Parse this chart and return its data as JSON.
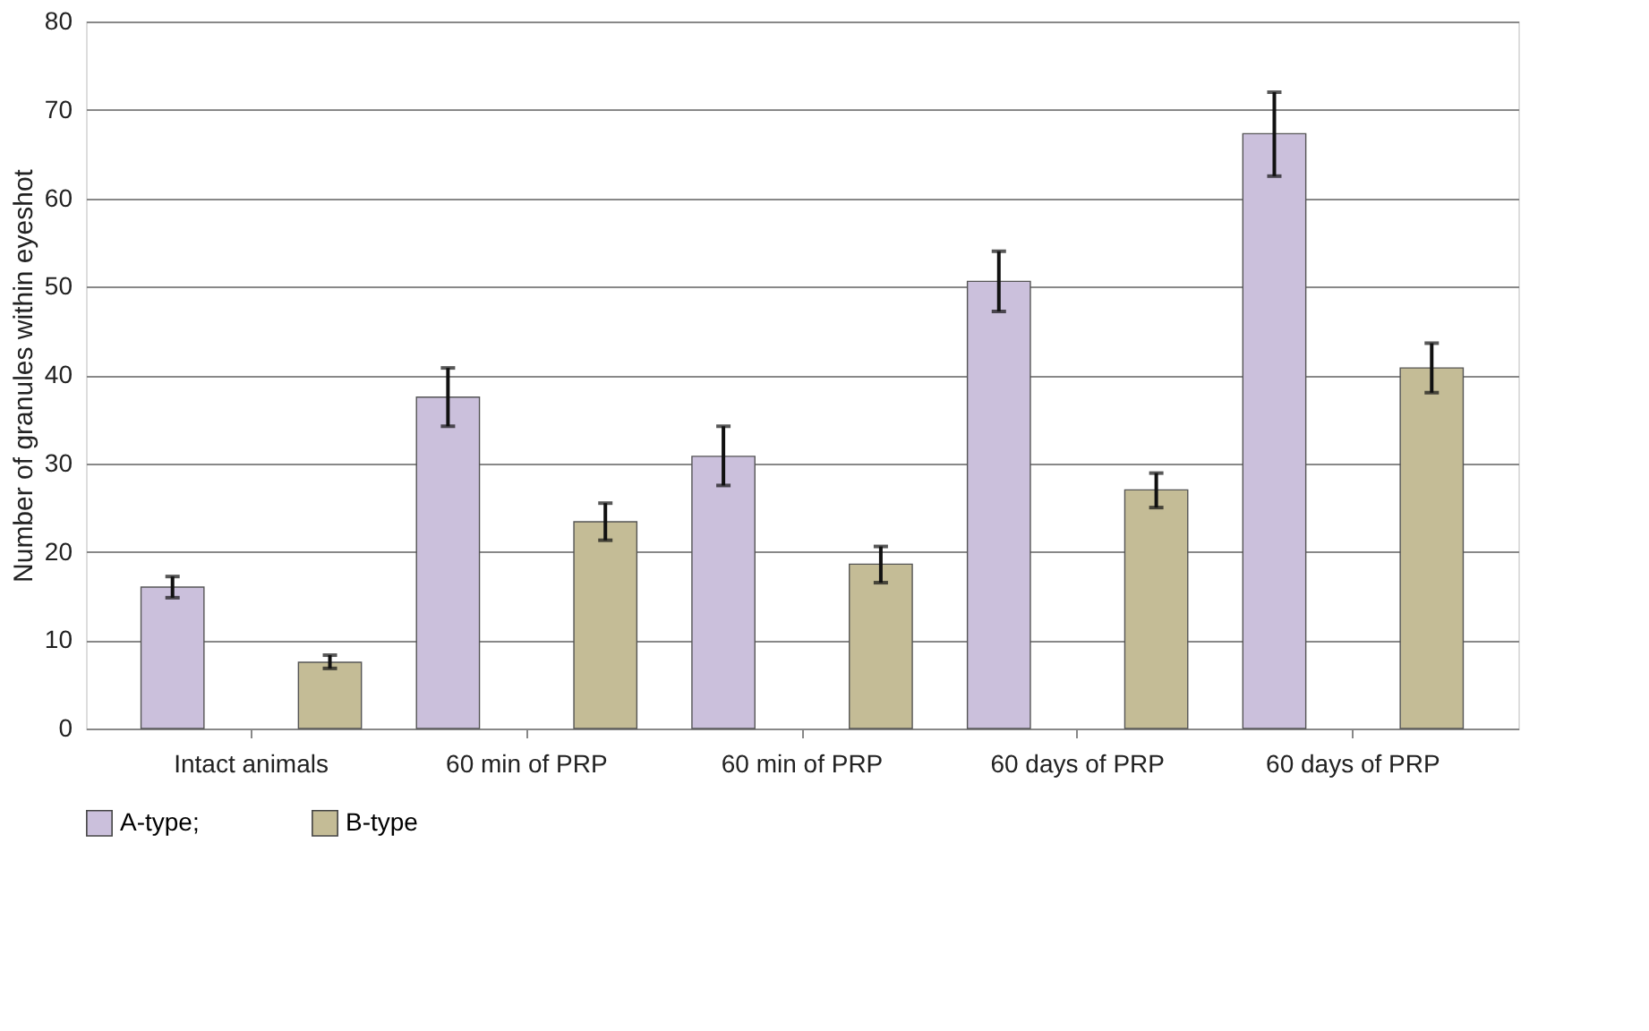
{
  "chart_data": {
    "type": "bar",
    "ylabel": "Number of granules within eyeshot",
    "categories": [
      "Intact animals",
      "60 min of PRP",
      "60 min of PRP",
      "60 days of PRP",
      "60 days of PRP"
    ],
    "series": [
      {
        "name": "A-type;",
        "color": "#cbc0dc",
        "values": [
          16,
          37.5,
          30.8,
          50.6,
          67.3
        ],
        "errors": [
          [
            14.8,
            17.2
          ],
          [
            34.2,
            40.8
          ],
          [
            27.5,
            34.2
          ],
          [
            47.2,
            54
          ],
          [
            62.5,
            72
          ]
        ]
      },
      {
        "name": "B-type",
        "color": "#c4bc96",
        "values": [
          7.5,
          23.4,
          18.6,
          27,
          40.8
        ],
        "errors": [
          [
            6.8,
            8.3
          ],
          [
            21.3,
            25.5
          ],
          [
            16.5,
            20.6
          ],
          [
            25,
            28.9
          ],
          [
            38,
            43.6
          ]
        ]
      }
    ],
    "ylim": [
      0,
      80
    ],
    "yticks": [
      0,
      10,
      20,
      30,
      40,
      50,
      60,
      70,
      80
    ],
    "grid": "y",
    "legend": "bottom"
  }
}
